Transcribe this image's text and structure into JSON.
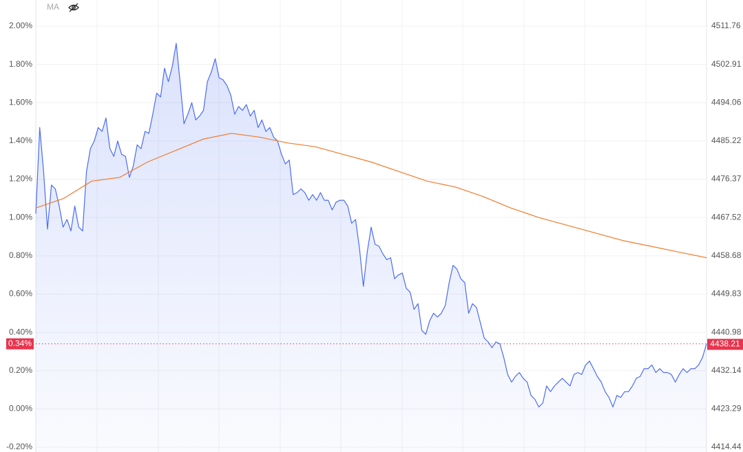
{
  "chart_data": {
    "type": "line",
    "series": [
      {
        "color": "#4a6cf0",
        "fill": true,
        "values": [
          1.02,
          1.47,
          1.24,
          0.94,
          1.17,
          1.15,
          1.06,
          0.95,
          0.99,
          0.93,
          1.06,
          0.95,
          0.93,
          1.24,
          1.36,
          1.4,
          1.47,
          1.45,
          1.52,
          1.36,
          1.32,
          1.4,
          1.33,
          1.32,
          1.21,
          1.27,
          1.38,
          1.36,
          1.45,
          1.44,
          1.54,
          1.65,
          1.63,
          1.78,
          1.71,
          1.79,
          1.91,
          1.71,
          1.49,
          1.54,
          1.6,
          1.51,
          1.53,
          1.56,
          1.71,
          1.76,
          1.83,
          1.73,
          1.72,
          1.69,
          1.64,
          1.54,
          1.58,
          1.56,
          1.59,
          1.53,
          1.56,
          1.47,
          1.51,
          1.45,
          1.47,
          1.42,
          1.4,
          1.33,
          1.28,
          1.3,
          1.12,
          1.13,
          1.15,
          1.13,
          1.09,
          1.12,
          1.09,
          1.13,
          1.09,
          1.09,
          1.04,
          1.08,
          1.09,
          1.09,
          1.06,
          0.97,
          0.99,
          0.84,
          0.64,
          0.82,
          0.95,
          0.86,
          0.85,
          0.81,
          0.78,
          0.79,
          0.68,
          0.7,
          0.71,
          0.63,
          0.61,
          0.52,
          0.55,
          0.41,
          0.39,
          0.46,
          0.5,
          0.48,
          0.5,
          0.54,
          0.66,
          0.75,
          0.73,
          0.68,
          0.66,
          0.5,
          0.55,
          0.53,
          0.45,
          0.37,
          0.35,
          0.32,
          0.35,
          0.34,
          0.27,
          0.18,
          0.14,
          0.17,
          0.19,
          0.16,
          0.14,
          0.07,
          0.05,
          0.01,
          0.03,
          0.12,
          0.09,
          0.12,
          0.14,
          0.16,
          0.14,
          0.12,
          0.18,
          0.19,
          0.18,
          0.23,
          0.25,
          0.21,
          0.17,
          0.14,
          0.09,
          0.06,
          0.01,
          0.07,
          0.06,
          0.09,
          0.09,
          0.12,
          0.16,
          0.17,
          0.21,
          0.21,
          0.23,
          0.19,
          0.21,
          0.19,
          0.19,
          0.18,
          0.14,
          0.18,
          0.21,
          0.19,
          0.21,
          0.21,
          0.23,
          0.27,
          0.34
        ]
      },
      {
        "name": "MA",
        "color": "#f07a2a",
        "values": [
          1.05,
          1.1,
          1.19,
          1.21,
          1.29,
          1.35,
          1.41,
          1.44,
          1.42,
          1.39,
          1.37,
          1.33,
          1.29,
          1.24,
          1.19,
          1.16,
          1.11,
          1.05,
          1.0,
          0.96,
          0.92,
          0.88,
          0.85,
          0.82,
          0.79
        ]
      }
    ],
    "ylim": [
      -0.2,
      2.0
    ],
    "yticks": [
      {
        "value": 2.0,
        "label": "2.00%"
      },
      {
        "value": 1.8,
        "label": "1.80%"
      },
      {
        "value": 1.6,
        "label": "1.60%"
      },
      {
        "value": 1.4,
        "label": "1.40%"
      },
      {
        "value": 1.2,
        "label": "1.20%"
      },
      {
        "value": 1.0,
        "label": "1.00%"
      },
      {
        "value": 0.8,
        "label": "0.80%"
      },
      {
        "value": 0.6,
        "label": "0.60%"
      },
      {
        "value": 0.4,
        "label": "0.40%"
      },
      {
        "value": 0.2,
        "label": "0.20%"
      },
      {
        "value": 0,
        "label": "0.00%"
      },
      {
        "value": -0.2,
        "label": "-0.20%"
      }
    ],
    "y2lim": [
      4414.44,
      4511.76
    ],
    "y2ticks": [
      4511.76,
      4502.91,
      4494.06,
      4485.22,
      4476.37,
      4467.52,
      4458.68,
      4449.83,
      4440.98,
      4432.14,
      4423.29,
      4414.44
    ],
    "last": {
      "value": 0.34,
      "label": "0.34%"
    },
    "last_price": 4438.21,
    "marker_color": "#e8344e",
    "grid": true
  }
}
